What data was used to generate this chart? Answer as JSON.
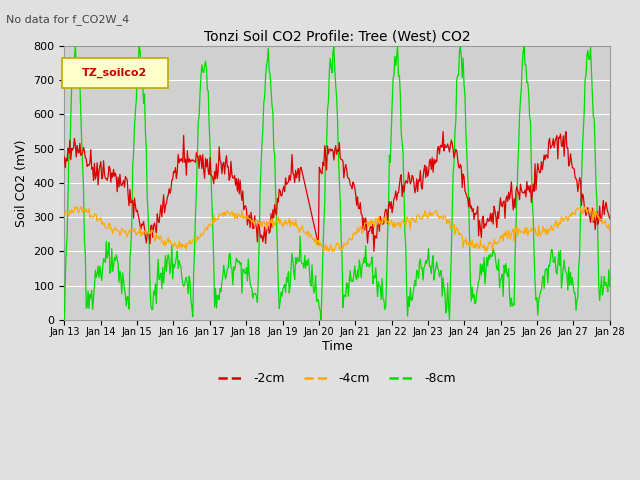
{
  "title": "Tonzi Soil CO2 Profile: Tree (West) CO2",
  "subtitle": "No data for f_CO2W_4",
  "xlabel": "Time",
  "ylabel": "Soil CO2 (mV)",
  "ylim": [
    0,
    800
  ],
  "yticks": [
    0,
    100,
    200,
    300,
    400,
    500,
    600,
    700,
    800
  ],
  "legend_label": "TZ_soilco2",
  "series_labels": [
    "-2cm",
    "-4cm",
    "-8cm"
  ],
  "series_colors": [
    "#dd0000",
    "#ffaa00",
    "#00dd00"
  ],
  "bg_color": "#e0e0e0",
  "plot_bg_color": "#d0d0d0",
  "xtick_labels": [
    "Jan 13",
    "Jan 14",
    "Jan 15",
    "Jan 16",
    "Jan 17",
    "Jan 18",
    "Jan 19",
    "Jan 20",
    "Jan 21",
    "Jan 22",
    "Jan 23",
    "Jan 24",
    "Jan 25",
    "Jan 26",
    "Jan 27",
    "Jan 28"
  ]
}
